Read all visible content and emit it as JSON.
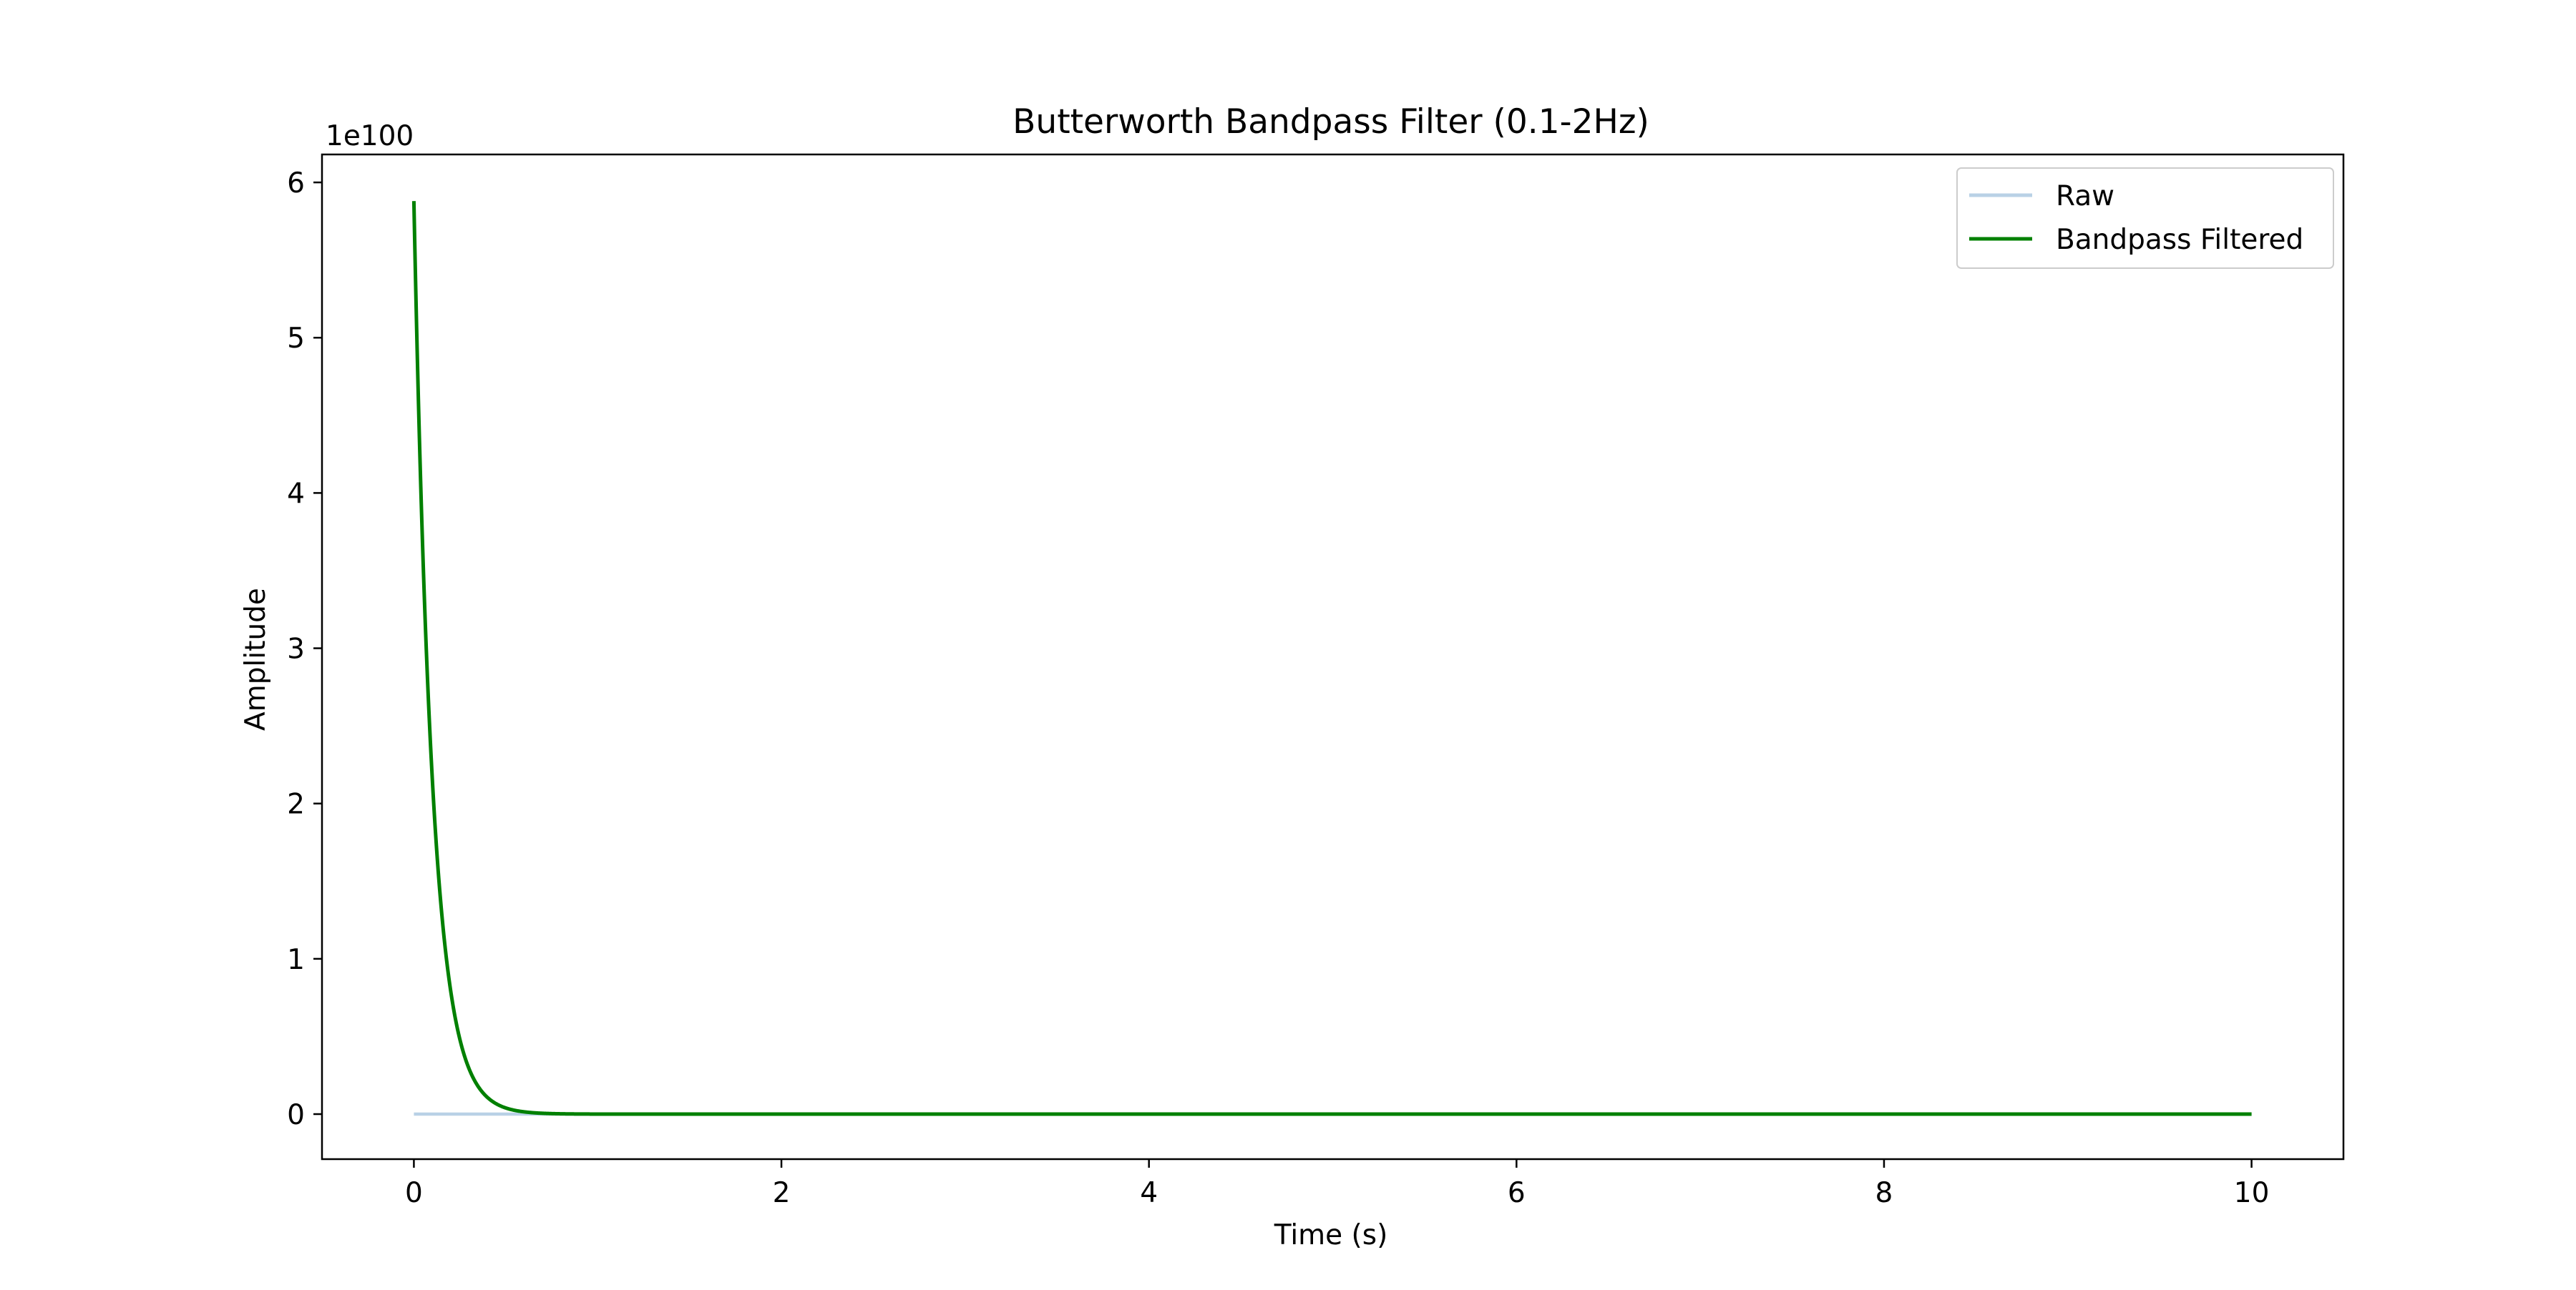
{
  "chart_data": {
    "type": "line",
    "title": "Butterworth Bandpass Filter (0.1-2Hz)",
    "xlabel": "Time (s)",
    "ylabel": "Amplitude",
    "y_offset_label": "1e100",
    "y_scale_factor": 1e+100,
    "xlim": [
      -0.5,
      10.5
    ],
    "ylim": [
      -0.29,
      6.18
    ],
    "x_ticks": [
      0,
      2,
      4,
      6,
      8,
      10
    ],
    "x_tick_labels": [
      "0",
      "2",
      "4",
      "6",
      "8",
      "10"
    ],
    "y_ticks": [
      0,
      1,
      2,
      3,
      4,
      5,
      6
    ],
    "y_tick_labels": [
      "0",
      "1",
      "2",
      "3",
      "4",
      "5",
      "6"
    ],
    "grid": false,
    "legend_position": "top-right",
    "series": [
      {
        "name": "Raw",
        "color": "#b9d1e6",
        "x": [
          0,
          10
        ],
        "y": [
          0,
          0
        ]
      },
      {
        "name": "Bandpass Filtered",
        "color": "#008000",
        "x": [
          0,
          0.02,
          0.04,
          0.06,
          0.08,
          0.1,
          0.12,
          0.15,
          0.18,
          0.2,
          0.25,
          0.3,
          0.35,
          0.4,
          0.45,
          0.5,
          0.6,
          0.7,
          0.8,
          1.0,
          1.5,
          2,
          3,
          4,
          5,
          6,
          7,
          8,
          9,
          10
        ],
        "y": [
          5.88,
          4.87,
          4.03,
          3.34,
          2.76,
          2.29,
          1.89,
          1.43,
          1.08,
          0.89,
          0.55,
          0.34,
          0.21,
          0.13,
          0.08,
          0.05,
          0.02,
          0.007,
          0.003,
          0.0004,
          0,
          0,
          0,
          0,
          0,
          0,
          0,
          0,
          0,
          0
        ]
      }
    ]
  }
}
